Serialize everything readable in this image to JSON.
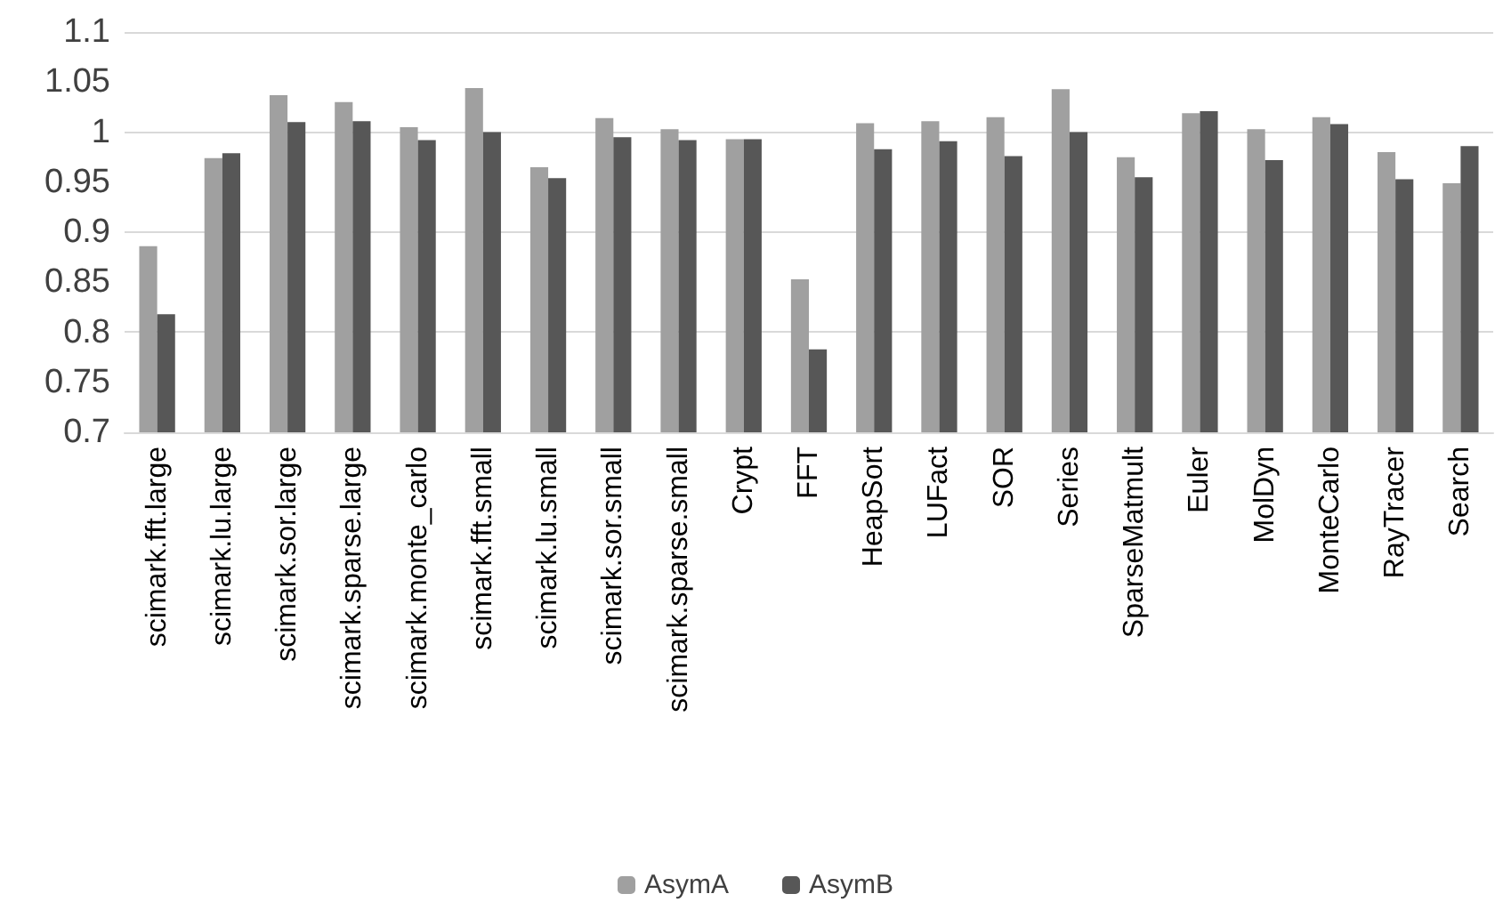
{
  "chart_data": {
    "type": "bar",
    "categories": [
      "scimark.fft.large",
      "scimark.lu.large",
      "scimark.sor.large",
      "scimark.sparse.large",
      "scimark.monte_carlo",
      "scimark.fft.small",
      "scimark.lu.small",
      "scimark.sor.small",
      "scimark.sparse.small",
      "Crypt",
      "FFT",
      "HeapSort",
      "LUFact",
      "SOR",
      "Series",
      "SparseMatmult",
      "Euler",
      "MolDyn",
      "MonteCarlo",
      "RayTracer",
      "Search"
    ],
    "series": [
      {
        "name": "AsymA",
        "color": "#a0a0a0",
        "values": [
          0.886,
          0.974,
          1.037,
          1.03,
          1.005,
          1.044,
          0.965,
          1.014,
          1.003,
          0.993,
          0.853,
          1.009,
          1.011,
          1.015,
          1.043,
          0.975,
          1.019,
          1.003,
          1.015,
          0.98,
          0.949
        ]
      },
      {
        "name": "AsymB",
        "color": "#575757",
        "values": [
          0.818,
          0.979,
          1.01,
          1.011,
          0.992,
          1.0,
          0.954,
          0.995,
          0.992,
          0.993,
          0.783,
          0.983,
          0.991,
          0.976,
          1.0,
          0.955,
          1.021,
          0.972,
          1.008,
          0.953,
          0.986
        ]
      }
    ],
    "ylim": [
      0.7,
      1.1
    ],
    "yticks": [
      0.7,
      0.75,
      0.8,
      0.85,
      0.9,
      0.95,
      1,
      1.05,
      1.1
    ],
    "grid": "y",
    "legend": "bottom"
  }
}
